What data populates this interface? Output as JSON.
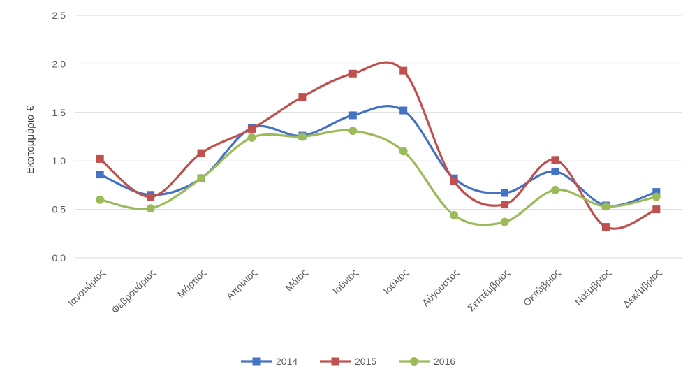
{
  "chart_data": {
    "type": "line",
    "title": "",
    "xlabel": "",
    "ylabel": "Εκατομμύρια €",
    "ylim": [
      0,
      2.5
    ],
    "yticks": [
      "0,0",
      "0,5",
      "1,0",
      "1,5",
      "2,0",
      "2,5"
    ],
    "grid": true,
    "smooth": true,
    "legend_position": "bottom",
    "categories": [
      "Ιανουάριος",
      "Φεβρουάριος",
      "Μάρτιος",
      "Απρίλιος",
      "Μάιος",
      "Ιούνιος",
      "Ιούλιος",
      "Αύγουστος",
      "Σεπτέμβριος",
      "Οκτώβριος",
      "Νοέμβριος",
      "Δεκέμβριος"
    ],
    "series": [
      {
        "name": "2014",
        "color": "#4472C4",
        "marker": "square",
        "values": [
          0.86,
          0.65,
          0.82,
          1.34,
          1.26,
          1.47,
          1.52,
          0.82,
          0.67,
          0.89,
          0.54,
          0.68
        ]
      },
      {
        "name": "2015",
        "color": "#C0504D",
        "marker": "square",
        "values": [
          1.02,
          0.63,
          1.08,
          1.33,
          1.66,
          1.9,
          1.93,
          0.79,
          0.55,
          1.01,
          0.32,
          0.5
        ]
      },
      {
        "name": "2016",
        "color": "#9BBB59",
        "marker": "circle",
        "values": [
          0.6,
          0.51,
          0.82,
          1.24,
          1.25,
          1.31,
          1.1,
          0.44,
          0.37,
          0.7,
          0.53,
          0.63
        ]
      }
    ]
  }
}
